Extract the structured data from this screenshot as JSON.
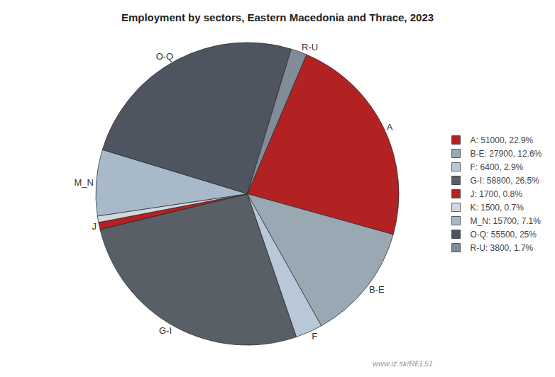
{
  "chart_data": {
    "type": "pie",
    "title": "Employment by sectors, Eastern Macedonia and Thrace, 2023",
    "categories": [
      "A: 51000, 22.9%",
      "B-E: 27900, 12.6%",
      "F: 6400, 2.9%",
      "G-I: 58800, 26.5%",
      "J: 1700, 0.8%",
      "K: 1500, 0.7%",
      "M_N: 15700, 7.1%",
      "O-Q: 55500, 25%",
      "R-U: 3800, 1.7%"
    ],
    "labels": [
      "A",
      "B-E",
      "F",
      "G-I",
      "J",
      null,
      "M_N",
      "O-Q",
      "R-U"
    ],
    "values": [
      51000,
      27900,
      6400,
      58800,
      1700,
      1500,
      15700,
      55500,
      3800
    ],
    "colors": [
      "#b22222",
      "#9aa8b4",
      "#b8c8d8",
      "#585f66",
      "#b22222",
      "#d0d8e0",
      "#a8baca",
      "#4e5560",
      "#808c98"
    ],
    "legend": "right",
    "annotations": [
      {
        "text": "www.iz.sk/REL51"
      }
    ]
  }
}
